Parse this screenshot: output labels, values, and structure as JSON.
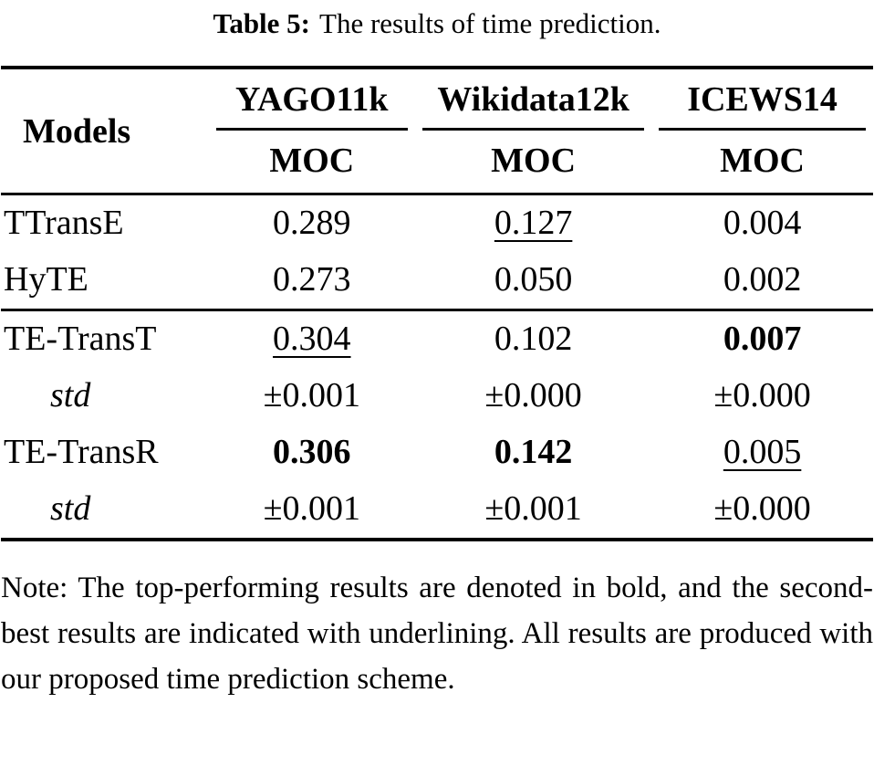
{
  "caption": {
    "label": "Table 5:",
    "text": "The results of time prediction."
  },
  "table": {
    "models_header": "Models",
    "col_headers": [
      "YAGO11k",
      "Wikidata12k",
      "ICEWS14"
    ],
    "metric_headers": [
      "MOC",
      "MOC",
      "MOC"
    ],
    "rows": [
      {
        "model": "TTransE",
        "cells": [
          {
            "v": "0.289",
            "style": "plain"
          },
          {
            "v": "0.127",
            "style": "underline"
          },
          {
            "v": "0.004",
            "style": "plain"
          }
        ]
      },
      {
        "model": "HyTE",
        "cells": [
          {
            "v": "0.273",
            "style": "plain"
          },
          {
            "v": "0.050",
            "style": "plain"
          },
          {
            "v": "0.002",
            "style": "plain"
          }
        ]
      },
      {
        "model": "TE-TransT",
        "cells": [
          {
            "v": "0.304",
            "style": "underline"
          },
          {
            "v": "0.102",
            "style": "plain"
          },
          {
            "v": "0.007",
            "style": "bold"
          }
        ]
      },
      {
        "model": "std",
        "cells": [
          {
            "v": "±0.001",
            "style": "plain"
          },
          {
            "v": "±0.000",
            "style": "plain"
          },
          {
            "v": "±0.000",
            "style": "plain"
          }
        ]
      },
      {
        "model": "TE-TransR",
        "cells": [
          {
            "v": "0.306",
            "style": "bold"
          },
          {
            "v": "0.142",
            "style": "bold"
          },
          {
            "v": "0.005",
            "style": "underline"
          }
        ]
      },
      {
        "model": "std",
        "cells": [
          {
            "v": "±0.001",
            "style": "plain"
          },
          {
            "v": "±0.001",
            "style": "plain"
          },
          {
            "v": "±0.000",
            "style": "plain"
          }
        ]
      }
    ]
  },
  "note": "Note: The top-performing results are denoted in bold, and the second-best results are indicated with underlining. All results are produced with our proposed time prediction scheme."
}
